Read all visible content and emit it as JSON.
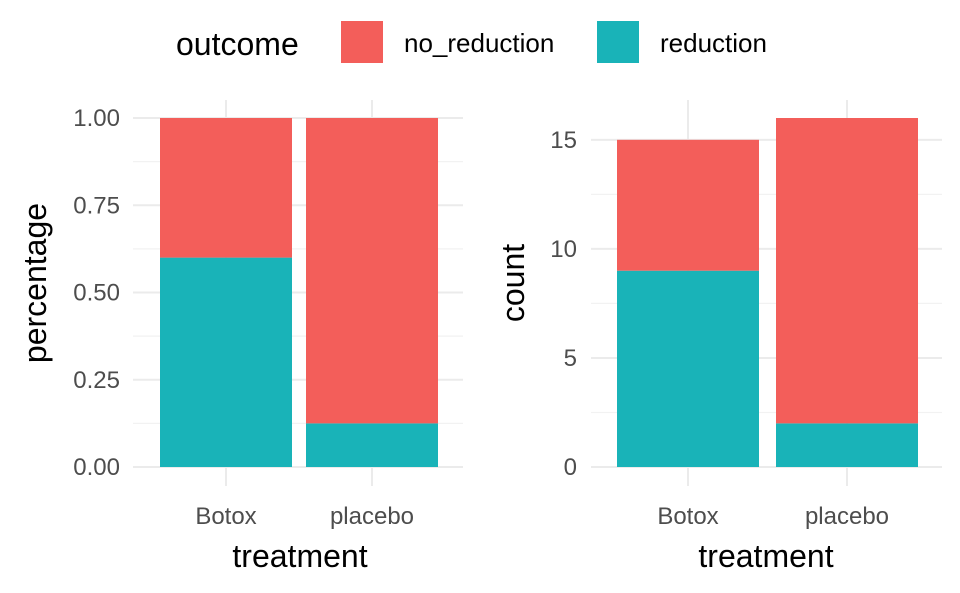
{
  "legend": {
    "title": "outcome",
    "items": [
      {
        "label": "no_reduction",
        "color": "#F35E5A"
      },
      {
        "label": "reduction",
        "color": "#19B3B8"
      }
    ]
  },
  "chart_data": [
    {
      "type": "bar",
      "stacked": true,
      "categories": [
        "Botox",
        "placebo"
      ],
      "series": [
        {
          "name": "reduction",
          "values": [
            0.6,
            0.125
          ],
          "color": "#19B3B8"
        },
        {
          "name": "no_reduction",
          "values": [
            0.4,
            0.875
          ],
          "color": "#F35E5A"
        }
      ],
      "xlabel": "treatment",
      "ylabel": "percentage",
      "ylim": [
        0,
        1
      ],
      "yticks": [
        "0.00",
        "0.25",
        "0.50",
        "0.75",
        "1.00"
      ],
      "ytick_values": [
        0,
        0.25,
        0.5,
        0.75,
        1
      ],
      "grid": true,
      "legend_position": "top"
    },
    {
      "type": "bar",
      "stacked": true,
      "categories": [
        "Botox",
        "placebo"
      ],
      "series": [
        {
          "name": "reduction",
          "values": [
            9,
            2
          ],
          "color": "#19B3B8"
        },
        {
          "name": "no_reduction",
          "values": [
            6,
            14
          ],
          "color": "#F35E5A"
        }
      ],
      "xlabel": "treatment",
      "ylabel": "count",
      "ylim": [
        0,
        16
      ],
      "yticks": [
        "0",
        "5",
        "10",
        "15"
      ],
      "ytick_values": [
        0,
        5,
        10,
        15
      ],
      "grid": true,
      "legend_position": "top"
    }
  ]
}
